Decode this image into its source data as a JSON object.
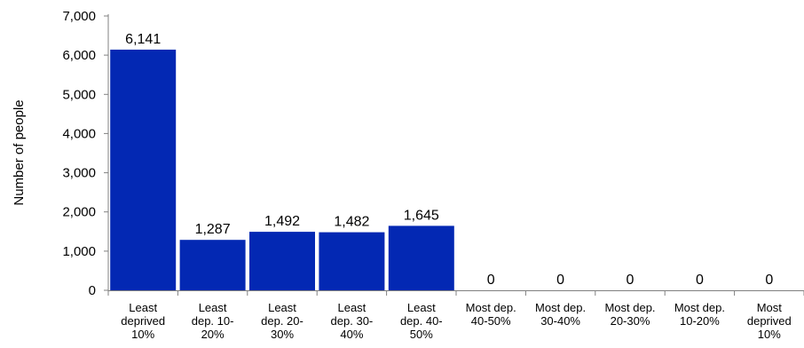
{
  "chart_data": {
    "type": "bar",
    "categories": [
      "Least deprived 10%",
      "Least dep. 10-20%",
      "Least dep. 20-30%",
      "Least dep. 30-40%",
      "Least dep. 40-50%",
      "Most dep. 40-50%",
      "Most dep. 30-40%",
      "Most dep. 20-30%",
      "Most dep. 10-20%",
      "Most deprived 10%"
    ],
    "category_lines": [
      [
        "Least",
        "deprived",
        "10%"
      ],
      [
        "Least",
        "dep. 10-",
        "20%"
      ],
      [
        "Least",
        "dep. 20-",
        "30%"
      ],
      [
        "Least",
        "dep. 30-",
        "40%"
      ],
      [
        "Least",
        "dep. 40-",
        "50%"
      ],
      [
        "Most dep.",
        "40-50%"
      ],
      [
        "Most dep.",
        "30-40%"
      ],
      [
        "Most dep.",
        "20-30%"
      ],
      [
        "Most dep.",
        "10-20%"
      ],
      [
        "Most",
        "deprived",
        "10%"
      ]
    ],
    "values": [
      6141,
      1287,
      1492,
      1482,
      1645,
      0,
      0,
      0,
      0,
      0
    ],
    "data_labels": [
      "6,141",
      "1,287",
      "1,492",
      "1,482",
      "1,645",
      "0",
      "0",
      "0",
      "0",
      "0"
    ],
    "ylabel": "Number of people",
    "ylim": [
      0,
      7000
    ],
    "yticks": [
      0,
      1000,
      2000,
      3000,
      4000,
      5000,
      6000,
      7000
    ],
    "ytick_labels": [
      "0",
      "1,000",
      "2,000",
      "3,000",
      "4,000",
      "5,000",
      "6,000",
      "7,000"
    ],
    "grid": false,
    "legend": "none",
    "bar_color": "#0328B3"
  }
}
